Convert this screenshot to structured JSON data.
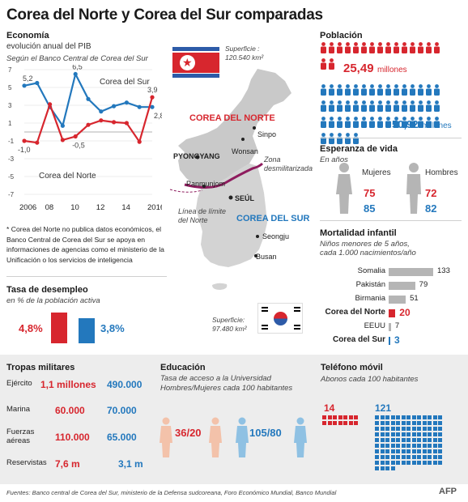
{
  "title": "Corea del Norte y Corea del Sur comparadas",
  "economy": {
    "heading": "Economía",
    "subheading": "evolución anual del PIB",
    "source": "Según el Banco Central de Corea del Sur",
    "label_south": "Corea del Sur",
    "label_north": "Corea del Norte",
    "note": "* Corea del Norte no publica datos económicos, el Banco Central de Corea del Sur se apoya en informaciones de agencias como el ministerio de la Unificación o los servicios de inteligencia"
  },
  "chart_data": {
    "type": "line",
    "x": [
      2006,
      2007,
      2008,
      2009,
      2010,
      2011,
      2012,
      2013,
      2014,
      2015,
      2016
    ],
    "x_tick_labels": [
      "2006",
      "08",
      "10",
      "12",
      "14",
      "2016"
    ],
    "y_ticks": [
      7,
      5,
      3,
      1,
      -1,
      -3,
      -5,
      -7
    ],
    "ylim": [
      -7,
      7
    ],
    "series": [
      {
        "name": "Corea del Sur",
        "color": "#2378bd",
        "values": [
          5.2,
          5.5,
          2.8,
          0.7,
          6.5,
          3.7,
          2.3,
          2.9,
          3.3,
          2.8,
          2.8
        ]
      },
      {
        "name": "Corea del Norte",
        "color": "#d7262e",
        "values": [
          -1.0,
          -1.2,
          3.1,
          -0.9,
          -0.5,
          0.8,
          1.3,
          1.1,
          1.0,
          -1.1,
          3.9
        ]
      }
    ],
    "annotations": [
      "5,2",
      "-1,0",
      "6,5",
      "-0,5",
      "3,9",
      "2,8"
    ]
  },
  "unemployment": {
    "heading": "Tasa de desempleo",
    "sub": "en % de la población activa",
    "north_value": "4,8%",
    "south_value": "3,8%",
    "north_pct": 4.8,
    "south_pct": 3.8
  },
  "map": {
    "north_area": "Superficie :\n120.540 km²",
    "south_area": "Superficie:\n97.480 km²",
    "north_label": "COREA DEL NORTE",
    "south_label": "COREA DEL SUR",
    "cities": {
      "sinpo": "Sinpo",
      "wonsan": "Wonsan",
      "pyongyang": "PYONGYANG",
      "panmunjom": "Panmunjom",
      "seoul": "SEÚL",
      "seongju": "Seongju",
      "busan": "Busan"
    },
    "dmz": "Zona\ndesmilitarizada",
    "limit_line": "Línea de límite\ndel Norte"
  },
  "population": {
    "heading": "Población",
    "north": "25,49",
    "south": "50,92",
    "unit": "millones"
  },
  "life": {
    "heading": "Esperanza de vida",
    "sub": "En años",
    "women": "Mujeres",
    "men": "Hombres",
    "north_women": "75",
    "north_men": "72",
    "south_women": "85",
    "south_men": "82"
  },
  "mortality": {
    "heading": "Mortalidad infantil",
    "sub": "Niños menores de 5 años,\ncada 1.000 nacimientos/año",
    "rows": [
      {
        "country": "Somalia",
        "value": 133,
        "label": "133",
        "highlight": "none"
      },
      {
        "country": "Pakistán",
        "value": 79,
        "label": "79",
        "highlight": "none"
      },
      {
        "country": "Birmania",
        "value": 51,
        "label": "51",
        "highlight": "none"
      },
      {
        "country": "Corea del Norte",
        "value": 20,
        "label": "20",
        "highlight": "north"
      },
      {
        "country": "EEUU",
        "value": 7,
        "label": "7",
        "highlight": "none"
      },
      {
        "country": "Corea del Sur",
        "value": 3,
        "label": "3",
        "highlight": "south"
      }
    ]
  },
  "military": {
    "heading": "Tropas militares",
    "rows": [
      {
        "label": "Ejército",
        "north": "1,1 millones",
        "south": "490.000"
      },
      {
        "label": "Marina",
        "north": "60.000",
        "south": "70.000"
      },
      {
        "label": "Fuerzas\naéreas",
        "north": "110.000",
        "south": "65.000"
      },
      {
        "label": "Reservistas",
        "north": "7,6 m",
        "south": "3,1 m"
      }
    ]
  },
  "education": {
    "heading": "Educación",
    "sub": "Tasa de acceso a la Universidad\nHombres/Mujeres cada 100 habitantes",
    "north": "36/20",
    "south": "105/80"
  },
  "phone": {
    "heading": "Teléfono móvil",
    "sub": "Abonos cada 100 habitantes",
    "north": "14",
    "south": "121"
  },
  "footer": {
    "sources": "Fuentes: Banco central de Corea del Sur, ministerio de la Defensa sudcoreana, Foro Económico Mundial, Banco Mundial",
    "logo": "AFP"
  },
  "colors": {
    "north": "#d7262e",
    "south": "#2378bd",
    "grey": "#b5b5b5"
  }
}
